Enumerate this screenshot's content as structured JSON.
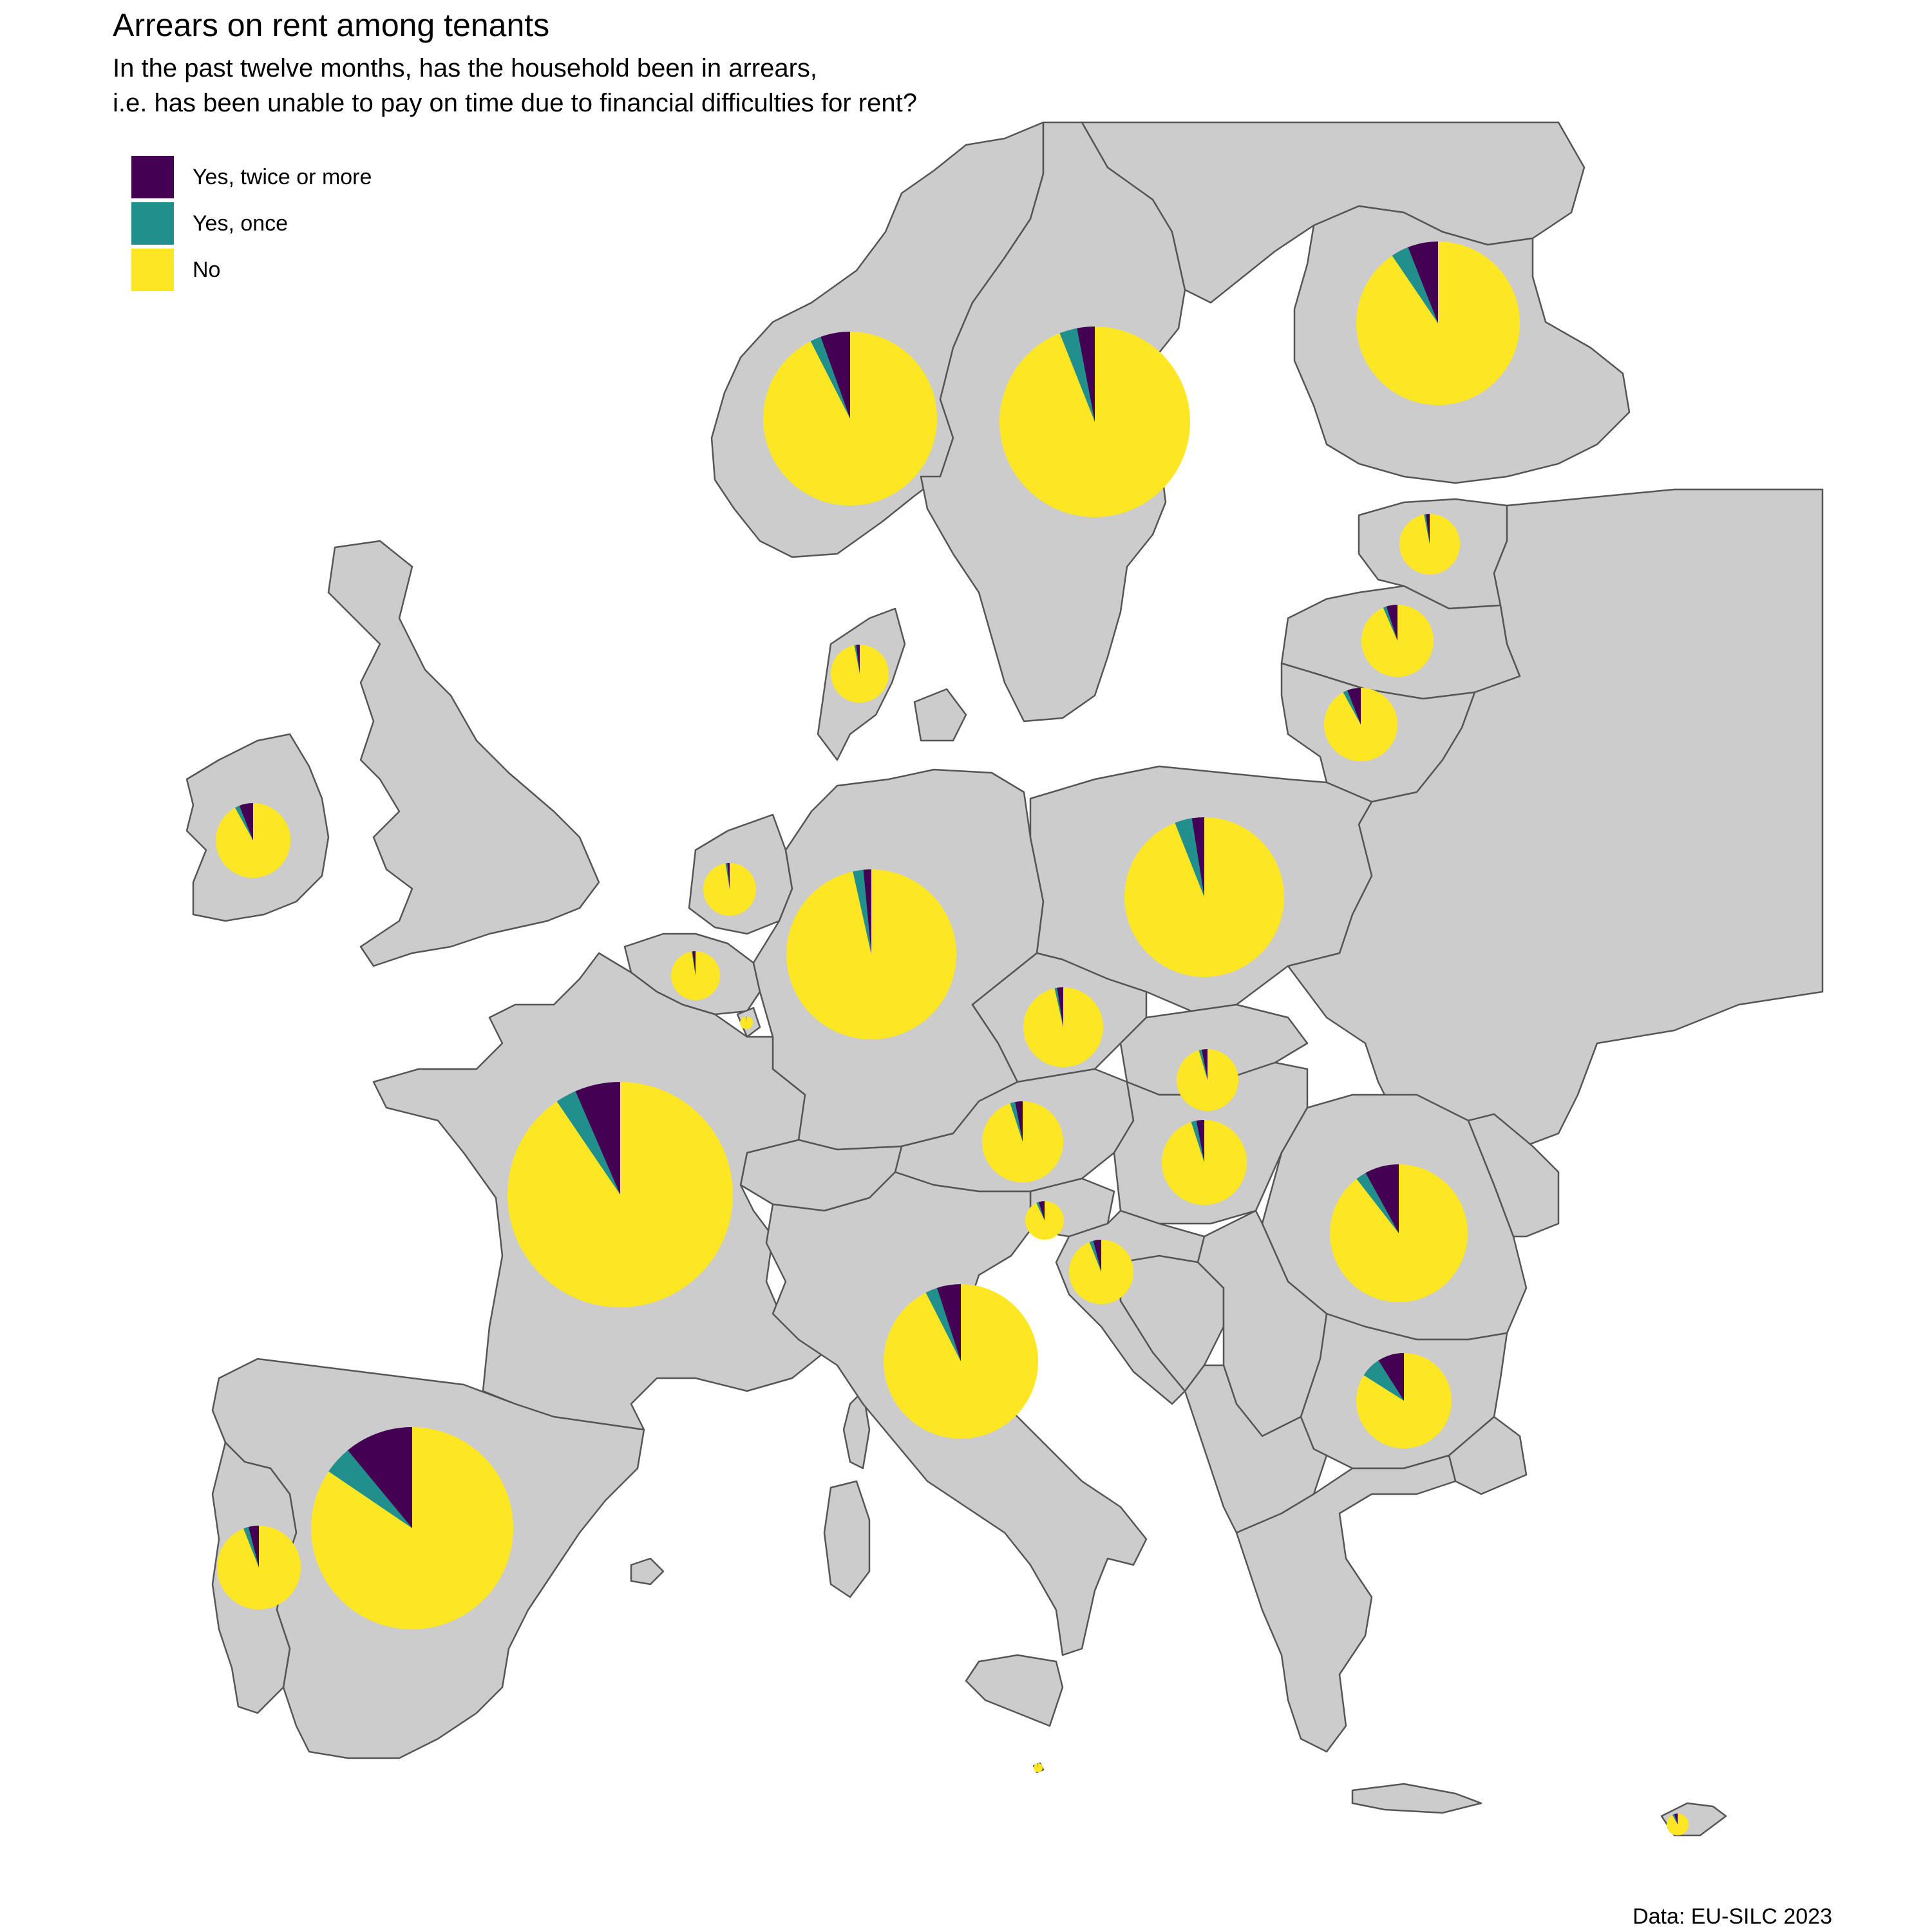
{
  "title": "Arrears on rent among tenants",
  "subtitle_line1": "In the past twelve months, has the household been in arrears,",
  "subtitle_line2": "i.e. has been unable to pay on time due to financial difficulties for rent?",
  "caption": "Data: EU-SILC 2023",
  "colors": {
    "land": "#cccccc",
    "border": "#555555",
    "sea": "#ffffff",
    "twice": "#440154",
    "once": "#21908c",
    "no": "#fde725"
  },
  "legend": [
    {
      "key": "twice",
      "label": "Yes, twice or more"
    },
    {
      "key": "once",
      "label": "Yes, once"
    },
    {
      "key": "no",
      "label": "No"
    }
  ],
  "chart_data": {
    "type": "pie",
    "series_order": [
      "Yes, twice or more",
      "Yes, once",
      "No"
    ],
    "pies": [
      {
        "country": "Norway",
        "twice": 5.5,
        "once": 2.0,
        "no": 92.5
      },
      {
        "country": "Sweden",
        "twice": 3.0,
        "once": 3.0,
        "no": 94.0
      },
      {
        "country": "Finland",
        "twice": 6.0,
        "once": 3.5,
        "no": 90.5
      },
      {
        "country": "Estonia",
        "twice": 2.0,
        "once": 1.0,
        "no": 97.0
      },
      {
        "country": "Latvia",
        "twice": 5.0,
        "once": 1.5,
        "no": 93.5
      },
      {
        "country": "Lithuania",
        "twice": 6.0,
        "once": 2.0,
        "no": 92.0
      },
      {
        "country": "Denmark",
        "twice": 2.0,
        "once": 1.0,
        "no": 97.0
      },
      {
        "country": "Ireland",
        "twice": 6.0,
        "once": 2.0,
        "no": 92.0
      },
      {
        "country": "Netherlands",
        "twice": 1.5,
        "once": 1.0,
        "no": 97.5
      },
      {
        "country": "Belgium",
        "twice": 2.0,
        "once": 0.5,
        "no": 97.5
      },
      {
        "country": "Luxembourg",
        "twice": 1.0,
        "once": 0.5,
        "no": 98.5
      },
      {
        "country": "Germany",
        "twice": 1.5,
        "once": 2.0,
        "no": 96.5
      },
      {
        "country": "Poland",
        "twice": 2.5,
        "once": 3.5,
        "no": 94.0
      },
      {
        "country": "Czechia",
        "twice": 2.5,
        "once": 1.0,
        "no": 96.5
      },
      {
        "country": "Slovakia",
        "twice": 3.0,
        "once": 1.5,
        "no": 95.5
      },
      {
        "country": "France",
        "twice": 6.5,
        "once": 3.0,
        "no": 90.5
      },
      {
        "country": "Austria",
        "twice": 3.0,
        "once": 2.0,
        "no": 95.0
      },
      {
        "country": "Hungary",
        "twice": 3.0,
        "once": 2.0,
        "no": 95.0
      },
      {
        "country": "Slovenia",
        "twice": 5.0,
        "once": 2.0,
        "no": 93.0
      },
      {
        "country": "Croatia",
        "twice": 4.0,
        "once": 2.0,
        "no": 94.0
      },
      {
        "country": "Romania",
        "twice": 8.0,
        "once": 2.5,
        "no": 89.5
      },
      {
        "country": "Italy",
        "twice": 5.0,
        "once": 2.5,
        "no": 92.5
      },
      {
        "country": "Bulgaria",
        "twice": 9.0,
        "once": 7.0,
        "no": 84.0
      },
      {
        "country": "Spain",
        "twice": 11.0,
        "once": 4.5,
        "no": 84.5
      },
      {
        "country": "Portugal",
        "twice": 4.0,
        "once": 2.0,
        "no": 94.0
      },
      {
        "country": "Malta",
        "twice": 1.0,
        "once": 0.5,
        "no": 98.5
      },
      {
        "country": "Cyprus",
        "twice": 5.0,
        "once": 3.0,
        "no": 92.0
      }
    ]
  }
}
